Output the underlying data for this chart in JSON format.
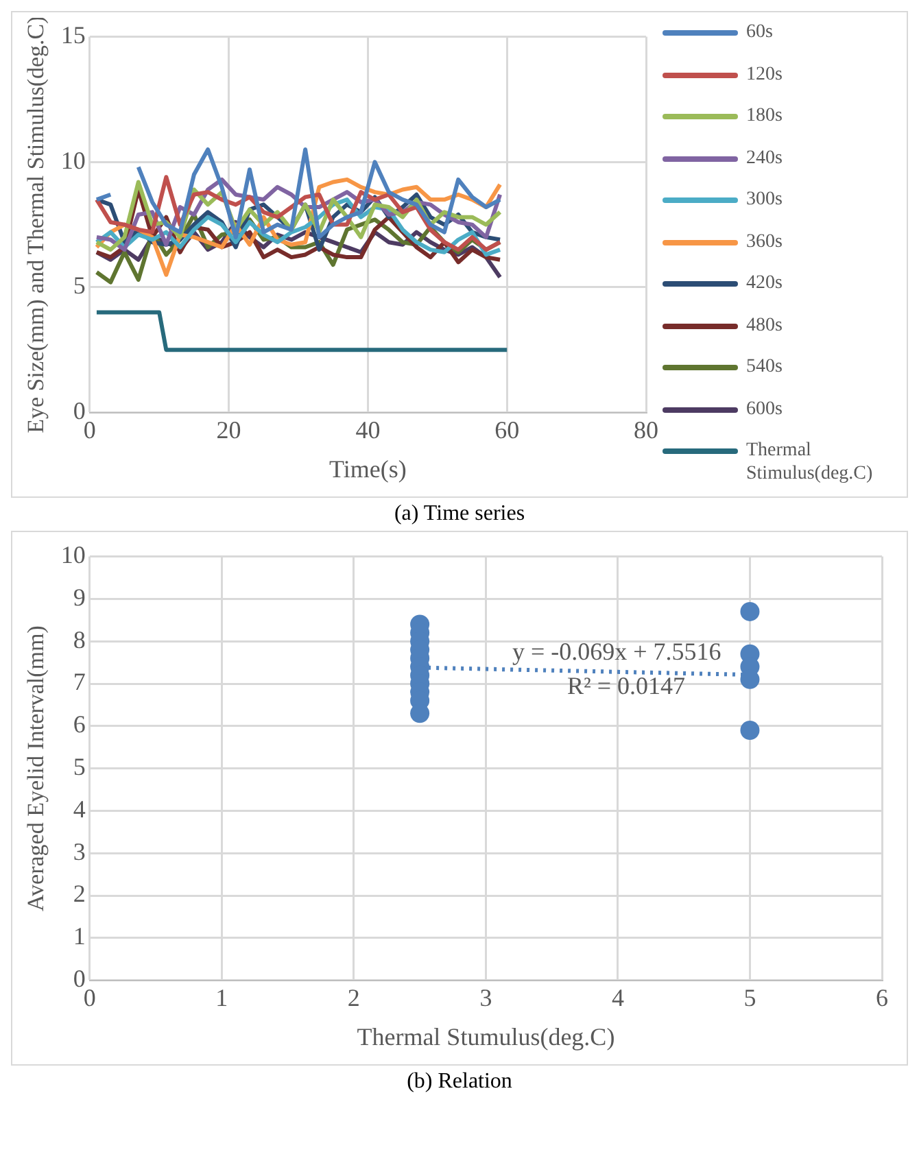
{
  "chart_data": [
    {
      "type": "line",
      "xlabel": "Time(s)",
      "ylabel": "Eye Size(mm) and Thermal Stimulus(deg.C)",
      "xlim": [
        0,
        80
      ],
      "xticks": [
        0,
        20,
        40,
        60,
        80
      ],
      "ylim": [
        0,
        15
      ],
      "yticks": [
        0,
        5,
        10,
        15
      ],
      "grid": true,
      "legend": "right",
      "marker": "none",
      "subtitle": "(a) Time series",
      "x": [
        1,
        3,
        5,
        7,
        9,
        11,
        13,
        15,
        17,
        19,
        21,
        23,
        25,
        27,
        29,
        31,
        33,
        35,
        37,
        39,
        41,
        43,
        45,
        47,
        49,
        51,
        53,
        55,
        57,
        59
      ],
      "series": [
        {
          "name": "60s",
          "color": "#4f81bd",
          "values": [
            8.5,
            8.7,
            null,
            9.8,
            8.4,
            7.5,
            7.2,
            9.5,
            10.5,
            9,
            7,
            9.7,
            7.2,
            7.5,
            7.3,
            10.5,
            7,
            7.5,
            7.8,
            8,
            10,
            8.8,
            8.5,
            8.3,
            7.5,
            7.2,
            9.3,
            8.6,
            8.2,
            8.5
          ]
        },
        {
          "name": "120s",
          "color": "#c0504d",
          "values": [
            8.5,
            7.6,
            7.5,
            7.3,
            7.2,
            9.4,
            7.5,
            8.7,
            8.8,
            8.5,
            8.3,
            8.6,
            8,
            7.8,
            8.2,
            8.6,
            8.7,
            7.5,
            7.5,
            8.8,
            8.5,
            8.7,
            8,
            8.2,
            7.3,
            6.8,
            6.5,
            7,
            6.5,
            6.8
          ]
        },
        {
          "name": "180s",
          "color": "#9bbb59",
          "values": [
            6.8,
            6.5,
            7,
            9.2,
            7.5,
            7.6,
            7,
            8.9,
            8.3,
            8.8,
            7.3,
            8.1,
            7.5,
            8,
            7.3,
            8.3,
            7.2,
            8.5,
            7.8,
            7,
            8.3,
            8.2,
            7.8,
            8.5,
            7.5,
            8,
            7.8,
            7.8,
            7.5,
            8
          ]
        },
        {
          "name": "240s",
          "color": "#8064a2",
          "values": [
            7,
            6.9,
            6.5,
            7.9,
            8,
            6.7,
            8.2,
            7.9,
            8.9,
            9.3,
            8.7,
            8.6,
            8.5,
            9,
            8.7,
            8.2,
            8.2,
            8.5,
            8.8,
            8.4,
            8.5,
            7.9,
            8,
            8.4,
            8.3,
            7.9,
            7.6,
            7.5,
            7,
            8.7
          ]
        },
        {
          "name": "300s",
          "color": "#4bacc6",
          "values": [
            6.8,
            7.2,
            6.6,
            7.1,
            6.9,
            7.2,
            6.6,
            7.3,
            7.8,
            7.5,
            6.8,
            7.6,
            7.1,
            6.8,
            7.2,
            7.4,
            7.8,
            8.3,
            8.5,
            7.8,
            8.2,
            8.1,
            7.3,
            6.8,
            6.5,
            6.4,
            6.9,
            7.2,
            6.3,
            6.5
          ]
        },
        {
          "name": "360s",
          "color": "#f79646",
          "values": [
            6.6,
            7.2,
            7.5,
            7.3,
            7,
            5.5,
            7.1,
            7,
            6.8,
            6.6,
            7.5,
            6.7,
            7.8,
            6.9,
            6.7,
            6.8,
            9,
            9.2,
            9.3,
            9,
            8.8,
            8.7,
            8.9,
            9,
            8.5,
            8.5,
            8.7,
            8.5,
            8.2,
            9.1
          ]
        },
        {
          "name": "420s",
          "color": "#2c4d75",
          "values": [
            8.5,
            8.3,
            6.8,
            7.3,
            6.8,
            6.7,
            6.9,
            7.5,
            8,
            7.6,
            6.6,
            8.1,
            8.3,
            7.8,
            7.3,
            8.3,
            6.5,
            7.8,
            8.3,
            8,
            8.6,
            7.8,
            8.2,
            8.7,
            7.8,
            7.5,
            7.9,
            7.2,
            7,
            6.9
          ]
        },
        {
          "name": "480s",
          "color": "#772c2a",
          "values": [
            6.4,
            6.2,
            6.6,
            8.9,
            7,
            7.8,
            6.4,
            7.4,
            7.3,
            6.6,
            6.8,
            7.2,
            6.2,
            6.5,
            6.2,
            6.3,
            6.6,
            6.3,
            6.2,
            6.2,
            7.3,
            7.8,
            7.2,
            6.6,
            6.2,
            6.8,
            6,
            6.5,
            6.2,
            6.1
          ]
        },
        {
          "name": "540s",
          "color": "#5f7530",
          "values": [
            5.6,
            5.2,
            6.4,
            5.3,
            7.2,
            6.3,
            6.9,
            7.9,
            6.6,
            7.1,
            7.2,
            7.7,
            6.9,
            7,
            6.6,
            6.6,
            6.8,
            5.9,
            7.3,
            7.5,
            7.7,
            7.3,
            6.8,
            6.7,
            7.4,
            6.8,
            6.4,
            6.9,
            6.5,
            6.8
          ]
        },
        {
          "name": "600s",
          "color": "#4d3b62",
          "values": [
            6.4,
            6.1,
            6.5,
            6.1,
            7,
            6.8,
            6.5,
            7.2,
            6.5,
            6.8,
            7.6,
            7,
            6.6,
            7.1,
            6.9,
            7.2,
            7,
            6.8,
            6.6,
            6.4,
            7.2,
            6.8,
            6.7,
            7.2,
            6.8,
            6.5,
            6.3,
            6.6,
            6.2,
            5.4
          ]
        },
        {
          "name": "Thermal Stimulus(deg.C)",
          "color": "#276a7c",
          "x": [
            1,
            10,
            11,
            60
          ],
          "values": [
            4,
            4,
            2.5,
            2.5
          ]
        }
      ]
    },
    {
      "type": "scatter",
      "xlabel": "Thermal Stumulus(deg.C)",
      "ylabel": "Averaged Eyelid Interval(mm)",
      "xlim": [
        0,
        6
      ],
      "xticks": [
        0,
        1,
        2,
        3,
        4,
        5,
        6
      ],
      "ylim": [
        0,
        10
      ],
      "yticks": [
        0,
        1,
        2,
        3,
        4,
        5,
        6,
        7,
        8,
        9,
        10
      ],
      "grid": true,
      "marker": "circle",
      "subtitle": "(b) Relation",
      "annotations": [
        {
          "text": "y = -0.069x + 7.5516",
          "x": 3.2,
          "y": 7.33
        },
        "R² = 0.0147"
      ],
      "series": [
        {
          "color": "#4f81bd",
          "x": [
            2.5,
            2.5,
            2.5,
            2.5,
            2.5,
            2.5,
            2.5,
            2.5,
            2.5,
            2.5,
            2.5,
            5,
            5,
            5,
            5,
            5
          ],
          "values": [
            8.4,
            8.2,
            8.0,
            7.8,
            7.6,
            7.4,
            7.2,
            7.0,
            6.8,
            6.6,
            6.3,
            8.7,
            7.7,
            7.4,
            7.1,
            5.9
          ]
        },
        {
          "type": "line",
          "color": "#4f81bd",
          "line_style": "dotted",
          "marker": "none",
          "x": [
            2.5,
            5
          ],
          "values": [
            7.38,
            7.21
          ]
        }
      ]
    }
  ]
}
